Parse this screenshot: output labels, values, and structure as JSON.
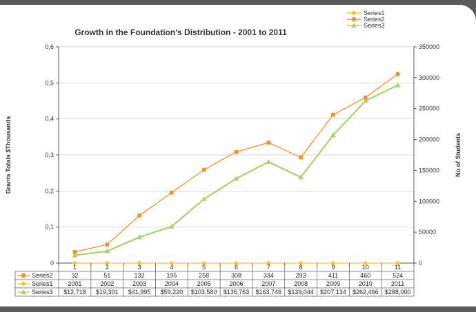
{
  "chart_data": {
    "type": "line",
    "title": "Growth in the Foundation's Distribution - 2001 to 2011",
    "ylabel_left": "Grants Totals $Thousands",
    "ylabel_right": "No of Students",
    "categories": [
      "1",
      "2",
      "3",
      "4",
      "5",
      "6",
      "7",
      "8",
      "9",
      "10",
      "11"
    ],
    "left_ticks": [
      "0",
      "0,1",
      "0,2",
      "0,3",
      "0,4",
      "0,5",
      "0,6"
    ],
    "left_ylim": [
      0,
      0.6
    ],
    "right_ticks": [
      "0",
      "50000",
      "100000",
      "150000",
      "200000",
      "250000",
      "300000",
      "350000"
    ],
    "right_ylim": [
      0,
      350000
    ],
    "legend_position": "top-right",
    "series": [
      {
        "name": "Series1",
        "axis": "left",
        "color": "#f5c518",
        "marker": "diamond",
        "values": [
          0,
          0,
          0,
          0,
          0,
          0,
          0,
          0,
          0,
          0,
          0
        ],
        "table": [
          "2001",
          "2002",
          "2003",
          "2004",
          "2005",
          "2006",
          "2007",
          "2008",
          "2009",
          "2010",
          "2011"
        ]
      },
      {
        "name": "Series2",
        "axis": "right",
        "color": "#f39020",
        "marker": "square",
        "values": [
          18000,
          30000,
          77000,
          114000,
          151000,
          180000,
          195000,
          171000,
          240000,
          268000,
          306000
        ],
        "table": [
          "32",
          "51",
          "132",
          "195",
          "258",
          "308",
          "334",
          "293",
          "411",
          "460",
          "524"
        ]
      },
      {
        "name": "Series3",
        "axis": "right",
        "color": "#a8d26a",
        "marker": "triangle",
        "values": [
          12718,
          19301,
          41995,
          59220,
          103580,
          136763,
          163746,
          139044,
          207134,
          262466,
          288000
        ],
        "table": [
          "$12,718",
          "$19,301",
          "$41,995",
          "$59,220",
          "$103,580",
          "$136,763",
          "$163,746",
          "$139,044",
          "$207,134",
          "$262,466",
          "$288,000"
        ]
      }
    ],
    "table_row_order": [
      "Series2",
      "Series1",
      "Series3"
    ],
    "legend_order": [
      "Series1",
      "Series2",
      "Series3"
    ]
  }
}
